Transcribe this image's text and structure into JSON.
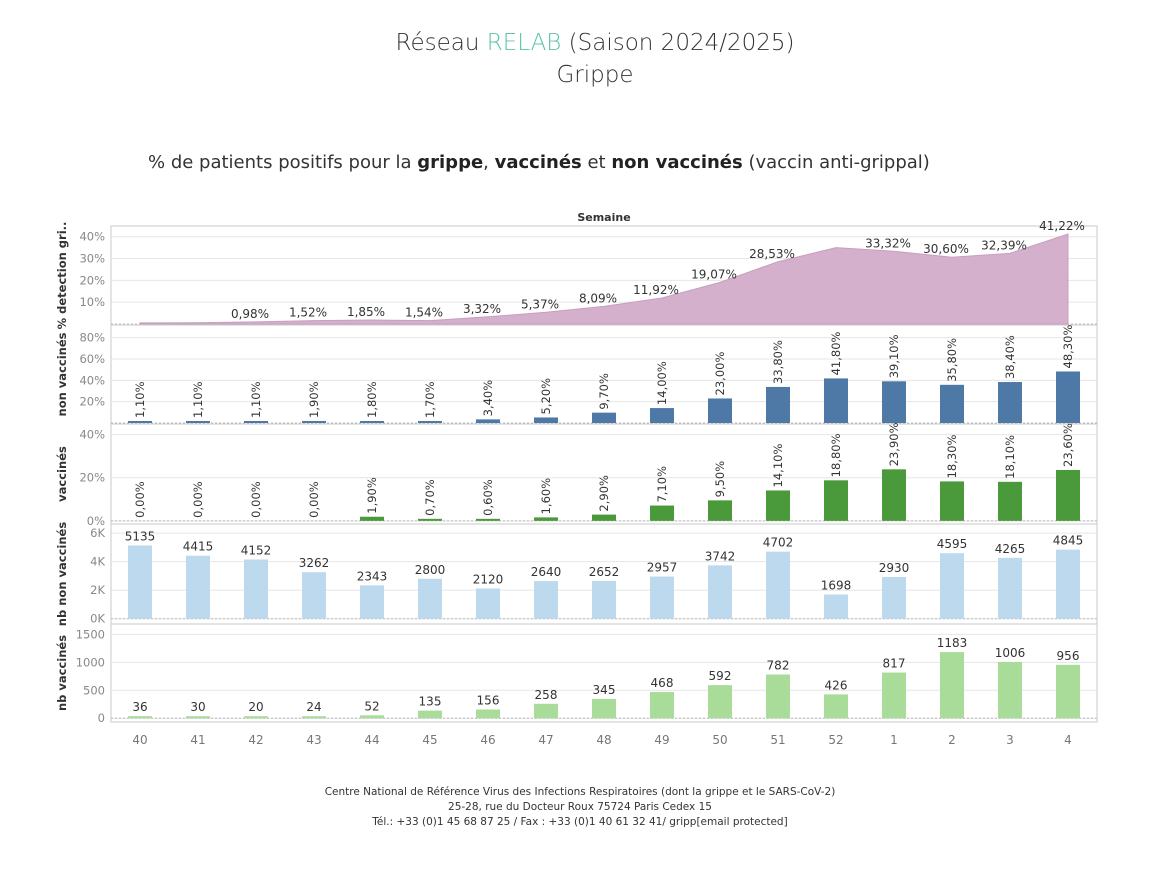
{
  "header": {
    "title_prefix": "Réseau ",
    "title_accent": "RELAB",
    "title_suffix": " (Saison 2024/2025)",
    "title_line2": "Grippe",
    "accent_color": "#5cc4a8"
  },
  "subtitle": {
    "part1": "% de patients positifs pour la ",
    "bold1": "grippe",
    "part2": ", ",
    "bold2": "vaccinés",
    "part3": " et ",
    "bold3": "non vaccinés",
    "part4": " (vaccin anti-grippal)"
  },
  "footer": {
    "line1": "Centre National de Référence Virus des Infections Respiratoires (dont la grippe et le SARS-CoV-2)",
    "line2": "25-28, rue du Docteur Roux 75724 Paris Cedex 15",
    "line3": "Tél.: +33 (0)1 45 68 87 25 / Fax : +33 (0)1  40 61 32 41/ gripp[email protected]"
  },
  "chart_data": {
    "type": "bar",
    "x_axis_title": "Semaine",
    "categories": [
      "40",
      "41",
      "42",
      "43",
      "44",
      "45",
      "46",
      "47",
      "48",
      "49",
      "50",
      "51",
      "52",
      "1",
      "2",
      "3",
      "4"
    ],
    "panels": [
      {
        "id": "detection",
        "type": "area",
        "ylabel": "% detection gri..",
        "color": "#d4b0cc",
        "ylim": [
          0,
          44
        ],
        "ticks": [
          10,
          20,
          30,
          40
        ],
        "tick_labels": [
          "10%",
          "20%",
          "30%",
          "40%"
        ],
        "values": [
          0.5,
          0.6,
          0.98,
          1.52,
          1.85,
          1.54,
          3.32,
          5.37,
          8.09,
          11.92,
          19.07,
          28.53,
          35.0,
          33.32,
          30.6,
          32.39,
          41.22
        ],
        "labels": [
          "",
          "",
          "0,98%",
          "1,52%",
          "1,85%",
          "1,54%",
          "3,32%",
          "5,37%",
          "8,09%",
          "11,92%",
          "19,07%",
          "28,53%",
          "",
          "33,32%",
          "30,60%",
          "32,39%",
          "41,22%"
        ]
      },
      {
        "id": "non-vaccines",
        "type": "bar",
        "ylabel": "non vaccinés",
        "color": "#4e79a7",
        "ylim": [
          0,
          90
        ],
        "ticks": [
          20,
          40,
          60,
          80
        ],
        "tick_labels": [
          "20%",
          "40%",
          "60%",
          "80%"
        ],
        "values": [
          1.1,
          1.1,
          1.1,
          1.9,
          1.8,
          1.7,
          3.4,
          5.2,
          9.7,
          14.0,
          23.0,
          33.8,
          41.8,
          39.1,
          35.8,
          38.4,
          48.3
        ],
        "labels": [
          "1,10%",
          "1,10%",
          "1,10%",
          "1,90%",
          "1,80%",
          "1,70%",
          "3,40%",
          "5,20%",
          "9,70%",
          "14,00%",
          "23,00%",
          "33,80%",
          "41,80%",
          "39,10%",
          "35,80%",
          "38,40%",
          "48,30%"
        ],
        "rotated_labels": true
      },
      {
        "id": "vaccines",
        "type": "bar",
        "ylabel": "vaccinés",
        "color": "#4a9a3c",
        "ylim": [
          -1,
          44
        ],
        "ticks": [
          0,
          20,
          40
        ],
        "tick_labels": [
          "0%",
          "20%",
          "40%"
        ],
        "values": [
          0,
          0,
          0,
          0,
          1.9,
          0.7,
          0.6,
          1.6,
          2.9,
          7.1,
          9.5,
          14.1,
          18.8,
          23.9,
          18.3,
          18.1,
          23.6
        ],
        "labels": [
          "0,00%",
          "0,00%",
          "0,00%",
          "0,00%",
          "1,90%",
          "0,70%",
          "0,60%",
          "1,60%",
          "2,90%",
          "7,10%",
          "9,50%",
          "14,10%",
          "18,80%",
          "23,90%",
          "18,30%",
          "18,10%",
          "23,60%"
        ],
        "rotated_labels": true
      },
      {
        "id": "nb-non-vaccines",
        "type": "bar",
        "ylabel": "nb non vaccinés",
        "color": "#bdd9ee",
        "ylim": [
          -300,
          6500
        ],
        "ticks": [
          0,
          2000,
          4000,
          6000
        ],
        "tick_labels": [
          "0K",
          "2K",
          "4K",
          "6K"
        ],
        "values": [
          5135,
          4415,
          4152,
          3262,
          2343,
          2800,
          2120,
          2640,
          2652,
          2957,
          3742,
          4702,
          1698,
          2930,
          4595,
          4265,
          4845
        ],
        "labels": [
          "5135",
          "4415",
          "4152",
          "3262",
          "2343",
          "2800",
          "2120",
          "2640",
          "2652",
          "2957",
          "3742",
          "4702",
          "1698",
          "2930",
          "4595",
          "4265",
          "4845"
        ]
      },
      {
        "id": "nb-vaccines",
        "type": "bar",
        "ylabel": "nb vaccinés",
        "color": "#a8dc98",
        "ylim": [
          -50,
          1650
        ],
        "ticks": [
          0,
          500,
          1000,
          1500
        ],
        "tick_labels": [
          "0",
          "500",
          "1000",
          "1500"
        ],
        "values": [
          36,
          30,
          20,
          24,
          52,
          135,
          156,
          258,
          345,
          468,
          592,
          782,
          426,
          817,
          1183,
          1006,
          956
        ],
        "labels": [
          "36",
          "30",
          "20",
          "24",
          "52",
          "135",
          "156",
          "258",
          "345",
          "468",
          "592",
          "782",
          "426",
          "817",
          "1183",
          "1006",
          "956"
        ]
      }
    ]
  }
}
